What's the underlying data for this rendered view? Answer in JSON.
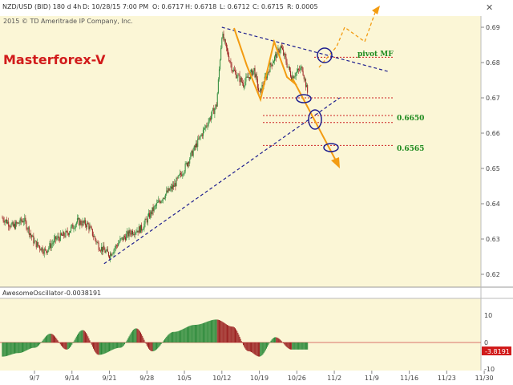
{
  "header": {
    "items": [
      {
        "text": "NZD/USD (BID) 180 d 4h"
      },
      {
        "text": "D: 10/28/15 7:00 PM"
      },
      {
        "text": "O: 0.6717"
      },
      {
        "text": "H: 0.6718"
      },
      {
        "text": "L: 0.6712"
      },
      {
        "text": "C: 0.6715"
      },
      {
        "text": "R: 0.0005"
      }
    ],
    "close_icon": "close-icon"
  },
  "copyright": "2015 © TD Ameritrade IP Company, Inc.",
  "brand_label": "Masterforex-V",
  "colors": {
    "background": "#fbf6d6",
    "up_candle": "#2c8a3a",
    "down_candle": "#9b2020",
    "trendline": "#1e1e8f",
    "wave": "#f39c12",
    "level": "#cc2222",
    "annotation_green": "#1e8a1e",
    "brand_red": "#d11b1b"
  },
  "annotations": {
    "pivot": "pivot MF",
    "level1": "0.6650",
    "level2": "0.6565"
  },
  "oscillator": {
    "name": "AwesomeOscillator",
    "value": "-0.0038191",
    "badge": "-3.8191",
    "right_ticks": [
      "10",
      "0",
      "-10"
    ]
  },
  "chart_data": {
    "type": "candlestick",
    "symbol": "NZD/USD (BID)",
    "ylim": [
      0.6165,
      0.6935
    ],
    "y_ticks": [
      0.62,
      0.63,
      0.64,
      0.65,
      0.66,
      0.67,
      0.68,
      0.69
    ],
    "y_tick_labels": [
      "0.62",
      "0.63",
      "0.64",
      "0.65",
      "0.66",
      "0.67",
      "0.68",
      "0.69"
    ],
    "x_tick_labels": [
      "9/7",
      "9/14",
      "9/21",
      "9/28",
      "10/5",
      "10/12",
      "10/19",
      "10/26",
      "11/2",
      "11/9",
      "11/16",
      "11/23",
      "11/30"
    ],
    "levels": [
      0.6815,
      0.67,
      0.665,
      0.663,
      0.6565
    ],
    "trendline_upper": [
      {
        "date": "10/12",
        "y": 0.69
      },
      {
        "date": "11/12",
        "y": 0.6775
      }
    ],
    "trendline_lower": [
      {
        "date": "9/20",
        "y": 0.623
      },
      {
        "date": "11/3",
        "y": 0.67
      }
    ],
    "close_path": [
      [
        "9/1",
        0.636
      ],
      [
        "9/3",
        0.6335
      ],
      [
        "9/5",
        0.6355
      ],
      [
        "9/7",
        0.629
      ],
      [
        "9/9",
        0.6265
      ],
      [
        "9/11",
        0.63
      ],
      [
        "9/13",
        0.6315
      ],
      [
        "9/15",
        0.635
      ],
      [
        "9/17",
        0.634
      ],
      [
        "9/19",
        0.628
      ],
      [
        "9/21",
        0.6255
      ],
      [
        "9/23",
        0.6295
      ],
      [
        "9/25",
        0.632
      ],
      [
        "9/27",
        0.633
      ],
      [
        "9/29",
        0.638
      ],
      [
        "10/1",
        0.642
      ],
      [
        "10/3",
        0.645
      ],
      [
        "10/5",
        0.65
      ],
      [
        "10/7",
        0.656
      ],
      [
        "10/9",
        0.662
      ],
      [
        "10/11",
        0.668
      ],
      [
        "10/12",
        0.688
      ],
      [
        "10/14",
        0.678
      ],
      [
        "10/16",
        0.674
      ],
      [
        "10/18",
        0.678
      ],
      [
        "10/19",
        0.671
      ],
      [
        "10/21",
        0.679
      ],
      [
        "10/23",
        0.6845
      ],
      [
        "10/25",
        0.676
      ],
      [
        "10/27",
        0.6785
      ],
      [
        "10/28",
        0.6715
      ]
    ],
    "projection": [
      [
        "10/28",
        0.6715
      ],
      [
        "11/4",
        0.654
      ]
    ],
    "oscillator_ylim": [
      -16,
      16
    ],
    "oscillator_phases": [
      [
        "9/1",
        -8
      ],
      [
        "9/4",
        -6
      ],
      [
        "9/7",
        -3
      ],
      [
        "9/10",
        5
      ],
      [
        "9/13",
        -4
      ],
      [
        "9/16",
        7
      ],
      [
        "9/19",
        -7
      ],
      [
        "9/23",
        -3
      ],
      [
        "9/26",
        8
      ],
      [
        "9/29",
        -5
      ],
      [
        "10/3",
        6
      ],
      [
        "10/7",
        10
      ],
      [
        "10/11",
        13
      ],
      [
        "10/14",
        9
      ],
      [
        "10/17",
        -5
      ],
      [
        "10/19",
        -8
      ],
      [
        "10/22",
        3
      ],
      [
        "10/25",
        -4
      ],
      [
        "10/28",
        -4
      ]
    ]
  }
}
